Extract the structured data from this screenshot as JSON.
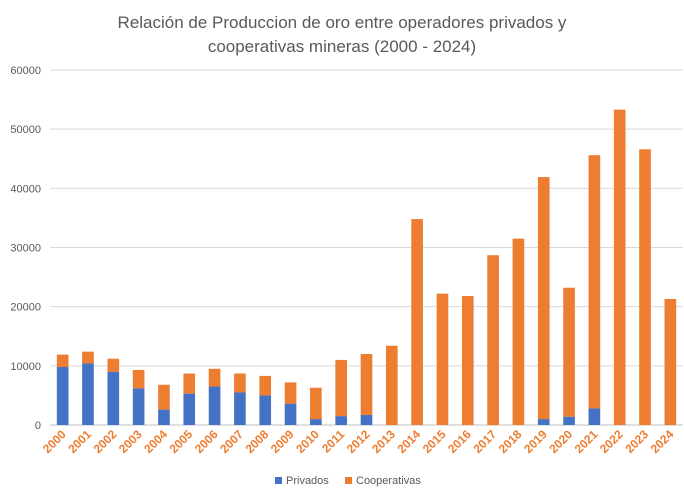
{
  "chart_data": {
    "type": "bar",
    "stacked": true,
    "title_lines": [
      "Relación de Produccion de oro entre operadores privados y",
      "cooperativas mineras (2000 - 2024)"
    ],
    "categories": [
      "2000",
      "2001",
      "2002",
      "2003",
      "2004",
      "2005",
      "2006",
      "2007",
      "2008",
      "2009",
      "2010",
      "2011",
      "2012",
      "2013",
      "2014",
      "2015",
      "2016",
      "2017",
      "2018",
      "2019",
      "2020",
      "2021",
      "2022",
      "2023",
      "2024"
    ],
    "series": [
      {
        "name": "Privados",
        "color": "#4472C4",
        "values": [
          9800,
          10400,
          9000,
          6200,
          2600,
          5300,
          6500,
          5500,
          5000,
          3600,
          1000,
          1500,
          1700,
          0,
          0,
          0,
          0,
          0,
          0,
          1000,
          1400,
          2800,
          0,
          0,
          0
        ]
      },
      {
        "name": "Cooperativas",
        "color": "#ED7D31",
        "values": [
          2100,
          2000,
          2200,
          3100,
          4200,
          3400,
          3000,
          3200,
          3300,
          3600,
          5300,
          9500,
          10300,
          13400,
          34800,
          22200,
          21800,
          28700,
          31500,
          40900,
          21800,
          42800,
          53300,
          46600,
          21300
        ]
      }
    ],
    "ylim": [
      0,
      60000
    ],
    "yticks": [
      0,
      10000,
      20000,
      30000,
      40000,
      50000,
      60000
    ],
    "xtick_color": "#ED7D31",
    "grid": true,
    "legend_position": "bottom"
  }
}
